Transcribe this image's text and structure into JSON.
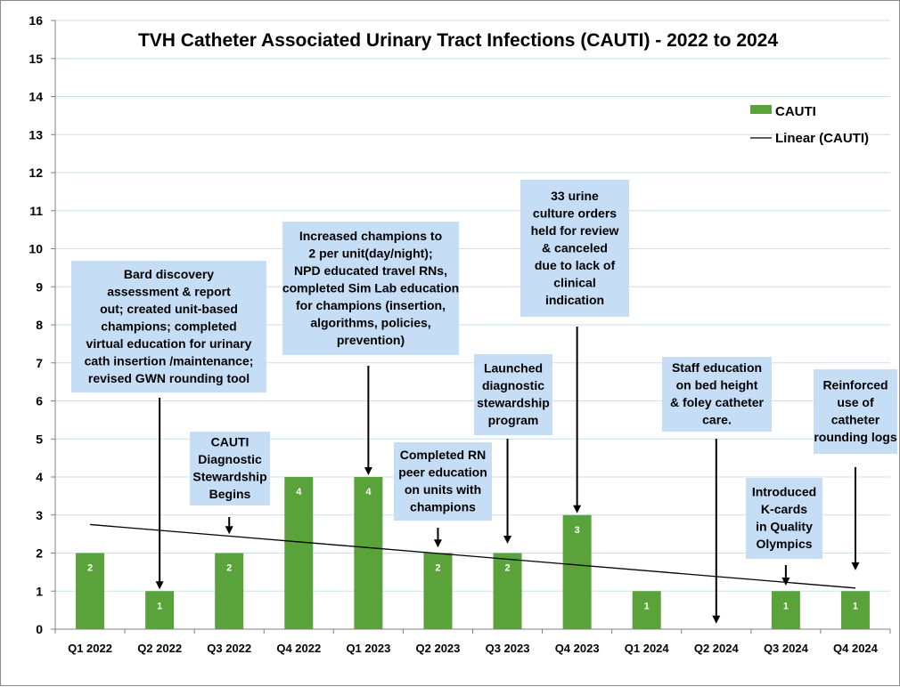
{
  "chart_data": {
    "type": "bar",
    "title": "TVH Catheter Associated Urinary Tract Infections (CAUTI) - 2022 to 2024",
    "categories": [
      "Q1 2022",
      "Q2 2022",
      "Q3 2022",
      "Q4 2022",
      "Q1 2023",
      "Q2 2023",
      "Q3 2023",
      "Q4 2023",
      "Q1 2024",
      "Q2 2024",
      "Q3 2024",
      "Q4 2024"
    ],
    "series": [
      {
        "name": "CAUTI",
        "values": [
          2,
          1,
          2,
          4,
          4,
          2,
          2,
          3,
          1,
          0,
          1,
          1
        ],
        "color": "#5aa33a"
      }
    ],
    "data_labels": [
      "2",
      "1",
      "2",
      "4",
      "4",
      "2",
      "2",
      "3",
      "1",
      "",
      "1",
      "1"
    ],
    "trendline": {
      "name": "Linear (CAUTI)",
      "start": 2.75,
      "end": 1.08,
      "color": "#000000"
    },
    "ylim": [
      0,
      16
    ],
    "yticks": [
      "0",
      "1",
      "2",
      "3",
      "4",
      "5",
      "6",
      "7",
      "8",
      "9",
      "10",
      "11",
      "12",
      "13",
      "14",
      "15",
      "16"
    ],
    "xlabel": "",
    "ylabel": "",
    "grid": true,
    "legend_position": "top-right",
    "annotations": [
      {
        "lines": [
          "Bard discovery",
          "assessment & report",
          "out; created unit-based",
          "champions; completed",
          "virtual education for urinary",
          "cath insertion /maintenance;",
          "revised GWN  rounding tool"
        ],
        "category_index": 1,
        "arrow_to": 1
      },
      {
        "lines": [
          "CAUTI",
          "Diagnostic",
          "Stewardship",
          "Begins"
        ],
        "category_index": 2,
        "arrow_to": 2.45
      },
      {
        "lines": [
          "Increased champions to",
          "2 per unit(day/night);",
          "NPD educated travel RNs,",
          "completed Sim Lab education",
          "for champions (insertion,",
          "algorithms, policies,",
          "prevention)"
        ],
        "category_index": 4,
        "arrow_to": 4
      },
      {
        "lines": [
          "Completed RN",
          "peer education",
          "on units with",
          "champions"
        ],
        "category_index": 5,
        "arrow_to": 2.1
      },
      {
        "lines": [
          "Launched",
          "diagnostic",
          "stewardship",
          "program"
        ],
        "category_index": 6,
        "arrow_to": 2.2
      },
      {
        "lines": [
          "33 urine",
          "culture orders",
          "held for review",
          "& canceled",
          "due to lack of",
          "clinical",
          "indication"
        ],
        "category_index": 7,
        "arrow_to": 3
      },
      {
        "lines": [
          "Staff education",
          "on bed height",
          "& foley catheter",
          "care."
        ],
        "category_index": 9,
        "arrow_to": 0.1
      },
      {
        "lines": [
          "Introduced",
          "K-cards",
          "in Quality",
          "Olympics"
        ],
        "category_index": 10,
        "arrow_to": 1.1
      },
      {
        "lines": [
          "Reinforced",
          "use of",
          "catheter",
          "rounding logs"
        ],
        "category_index": 11,
        "arrow_to": 1.5
      }
    ],
    "colors": {
      "bar": "#5aa33a",
      "annotation_box": "#c6ddf6",
      "grid": "#c9e2ea",
      "axis": "#808080"
    }
  }
}
